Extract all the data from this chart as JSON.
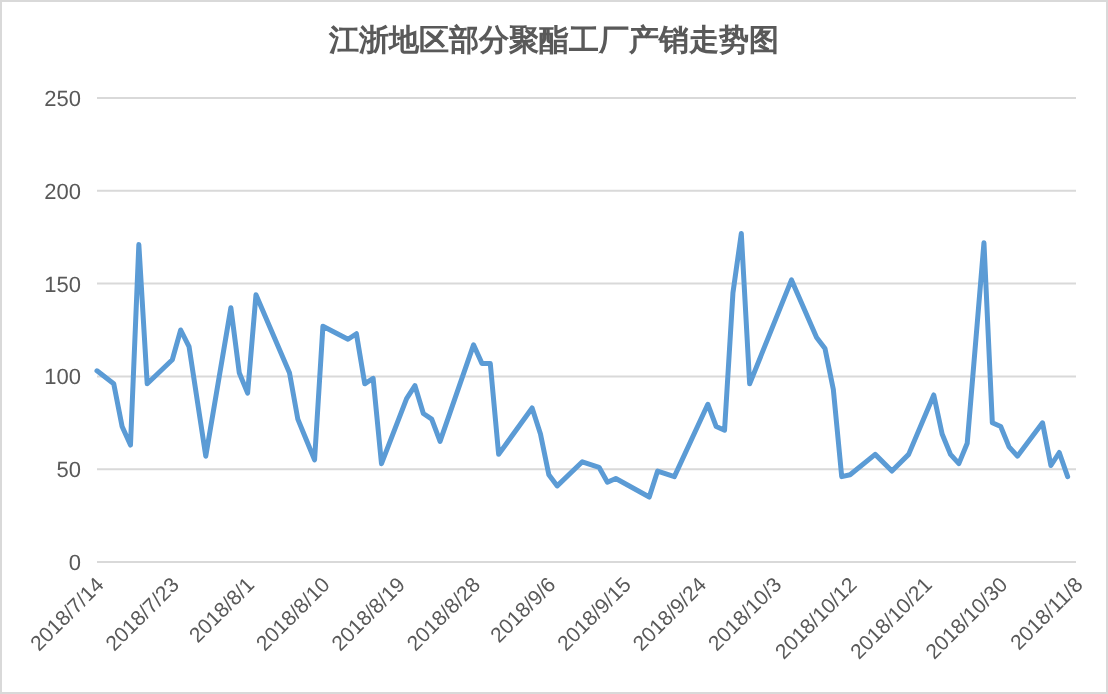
{
  "chart_data": {
    "type": "line",
    "title": "江浙地区部分聚酯工厂产销走势图",
    "x": [
      "2018-07-14",
      "2018-07-16",
      "2018-07-17",
      "2018-07-18",
      "2018-07-19",
      "2018-07-20",
      "2018-07-23",
      "2018-07-24",
      "2018-07-25",
      "2018-07-27",
      "2018-07-30",
      "2018-07-31",
      "2018-08-01",
      "2018-08-02",
      "2018-08-06",
      "2018-08-07",
      "2018-08-08",
      "2018-08-09",
      "2018-08-10",
      "2018-08-13",
      "2018-08-14",
      "2018-08-15",
      "2018-08-16",
      "2018-08-17",
      "2018-08-20",
      "2018-08-21",
      "2018-08-22",
      "2018-08-23",
      "2018-08-24",
      "2018-08-28",
      "2018-08-29",
      "2018-08-30",
      "2018-08-31",
      "2018-09-04",
      "2018-09-05",
      "2018-09-06",
      "2018-09-07",
      "2018-09-10",
      "2018-09-12",
      "2018-09-13",
      "2018-09-14",
      "2018-09-18",
      "2018-09-19",
      "2018-09-21",
      "2018-09-25",
      "2018-09-26",
      "2018-09-27",
      "2018-09-28",
      "2018-09-29",
      "2018-09-30",
      "2018-10-05",
      "2018-10-08",
      "2018-10-09",
      "2018-10-10",
      "2018-10-11",
      "2018-10-12",
      "2018-10-15",
      "2018-10-17",
      "2018-10-19",
      "2018-10-22",
      "2018-10-23",
      "2018-10-24",
      "2018-10-25",
      "2018-10-26",
      "2018-10-28",
      "2018-10-29",
      "2018-10-30",
      "2018-10-31",
      "2018-11-01",
      "2018-11-04",
      "2018-11-05",
      "2018-11-06",
      "2018-11-07"
    ],
    "values": [
      103,
      96,
      73,
      63,
      171,
      96,
      109,
      125,
      116,
      57,
      137,
      102,
      91,
      144,
      102,
      77,
      66,
      55,
      127,
      120,
      123,
      96,
      99,
      53,
      88,
      95,
      80,
      77,
      65,
      117,
      107,
      107,
      58,
      83,
      69,
      47,
      41,
      54,
      51,
      43,
      45,
      35,
      49,
      46,
      85,
      73,
      71,
      145,
      177,
      96,
      152,
      121,
      115,
      93,
      46,
      47,
      58,
      49,
      58,
      90,
      69,
      58,
      53,
      64,
      172,
      75,
      73,
      62,
      57,
      75,
      52,
      59,
      46
    ],
    "color": "#5b9bd5",
    "xlim": [
      "2018-07-14",
      "2018-11-08"
    ],
    "xticks": [
      {
        "value": "2018-07-14",
        "label": "2018/7/14"
      },
      {
        "value": "2018-07-23",
        "label": "2018/7/23"
      },
      {
        "value": "2018-08-01",
        "label": "2018/8/1"
      },
      {
        "value": "2018-08-10",
        "label": "2018/8/10"
      },
      {
        "value": "2018-08-19",
        "label": "2018/8/19"
      },
      {
        "value": "2018-08-28",
        "label": "2018/8/28"
      },
      {
        "value": "2018-09-06",
        "label": "2018/9/6"
      },
      {
        "value": "2018-09-15",
        "label": "2018/9/15"
      },
      {
        "value": "2018-09-24",
        "label": "2018/9/24"
      },
      {
        "value": "2018-10-03",
        "label": "2018/10/3"
      },
      {
        "value": "2018-10-12",
        "label": "2018/10/12"
      },
      {
        "value": "2018-10-21",
        "label": "2018/10/21"
      },
      {
        "value": "2018-10-30",
        "label": "2018/10/30"
      },
      {
        "value": "2018-11-08",
        "label": "2018/11/8"
      }
    ],
    "ylim": [
      0,
      250
    ],
    "yticks": [
      0,
      50,
      100,
      150,
      200,
      250
    ],
    "grid": "y"
  }
}
